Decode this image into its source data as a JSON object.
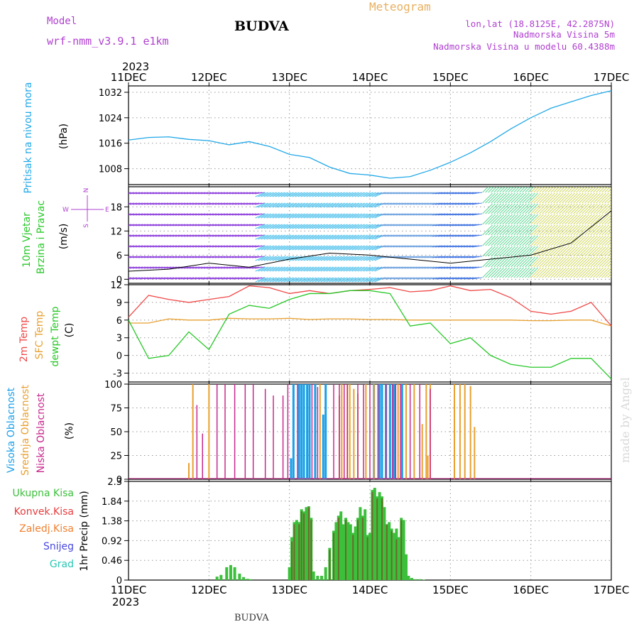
{
  "header": {
    "model_label": "Model",
    "model_name": "wrf-nmm_v3.9.1  e1km",
    "station": "BUDVA",
    "meteogram_label": "Meteogram",
    "lonlat": "lon,lat (18.8125E, 42.2875N)",
    "elevation": "Nadmorska Visina 5m",
    "model_elevation": "Nadmorska Visina u modelu 60.4388m",
    "top_year": "2023",
    "bottom_year": "2023",
    "footer_station": "BUDVA",
    "watermark": "made by Angel"
  },
  "colors": {
    "pressure": "#22a8e8",
    "temp2m": "#f04848",
    "sfc": "#e8a030",
    "dewpt": "#28c828",
    "high_cloud": "#1aa0e8",
    "mid_cloud": "#e8a030",
    "low_cloud": "#c8288c",
    "total_precip": "#3cc03c",
    "conv_precip": "#e83c3c",
    "frozen": "#f08030",
    "snow": "#4848e0",
    "hail": "#28c8b4",
    "purple_text": "#b040d0",
    "orange_text": "#e8b060"
  },
  "chart_data": [
    {
      "type": "line",
      "panel": "pressure",
      "ylabel_left": "Pritisak na nivou mora",
      "ylabel_unit": "(hPa)",
      "x_tick_labels": [
        "11DEC",
        "12DEC",
        "13DEC",
        "14DEC",
        "15DEC",
        "16DEC",
        "17DEC"
      ],
      "ylim": [
        1003,
        1034
      ],
      "y_ticks": [
        "1008",
        "1016",
        "1024",
        "1032"
      ],
      "grid": true,
      "x": [
        0,
        0.25,
        0.5,
        0.75,
        1,
        1.25,
        1.5,
        1.75,
        2,
        2.25,
        2.5,
        2.75,
        3,
        3.25,
        3.5,
        3.75,
        4,
        4.25,
        4.5,
        4.75,
        5,
        5.25,
        5.5,
        5.75,
        6
      ],
      "series": [
        {
          "values": [
            1017,
            1017.8,
            1018,
            1017.2,
            1016.8,
            1015.5,
            1016.5,
            1015,
            1012.5,
            1011.5,
            1008.5,
            1006.5,
            1006,
            1005,
            1005.5,
            1007.5,
            1010,
            1013,
            1016.5,
            1020.5,
            1024,
            1027,
            1029,
            1031,
            1032.5
          ]
        }
      ]
    },
    {
      "type": "line",
      "panel": "wind",
      "ylabel_left": "10m Vjetar",
      "ylabel_left2": "Brzina i Pravac",
      "ylabel_unit": "(m/s)",
      "compass": "N",
      "compass_w": "W",
      "compass_e": "E",
      "compass_s": "S",
      "ylim": [
        -1,
        23
      ],
      "y_ticks": [
        "0",
        "6",
        "12",
        "18"
      ],
      "x": [
        0,
        0.5,
        1,
        1.5,
        2,
        2.5,
        3,
        3.5,
        4,
        4.5,
        5,
        5.5,
        6
      ],
      "series": [
        {
          "values": [
            2,
            2.5,
            4,
            3,
            5,
            6.5,
            6,
            5,
            4,
            5,
            6,
            9,
            17
          ]
        }
      ],
      "barb_zones": [
        {
          "from": 0,
          "to": 1.7,
          "color": "#8c3cdc"
        },
        {
          "from": 1.7,
          "to": 3.2,
          "color": "#2ab4e8"
        },
        {
          "from": 3.2,
          "to": 3.9,
          "color": "#6ca0e0"
        },
        {
          "from": 3.9,
          "to": 4.4,
          "color": "#3c70e0"
        },
        {
          "from": 4.4,
          "to": 5.0,
          "color": "#40d080"
        },
        {
          "from": 5.0,
          "to": 6.0,
          "color": "#c8d040"
        }
      ]
    },
    {
      "type": "line",
      "panel": "temperature",
      "ylabel_lines": [
        "2m Temp",
        "SFC Temp",
        "dewpt Temp"
      ],
      "ylabel_unit": "(C)",
      "ylim": [
        -4.5,
        12
      ],
      "y_ticks": [
        "12",
        "9",
        "6",
        "3",
        "0",
        "-3"
      ],
      "x": [
        0,
        0.25,
        0.5,
        0.75,
        1,
        1.25,
        1.5,
        1.75,
        2,
        2.25,
        2.5,
        2.75,
        3,
        3.25,
        3.5,
        3.75,
        4,
        4.25,
        4.5,
        4.75,
        5,
        5.25,
        5.5,
        5.75,
        6
      ],
      "series": [
        {
          "name": "2m Temp",
          "values": [
            6.5,
            10.2,
            9.5,
            9,
            9.5,
            10,
            11.8,
            11.5,
            10.5,
            11,
            10.5,
            11,
            11.2,
            11.5,
            10.8,
            11,
            11.8,
            11,
            11.2,
            9.8,
            7.5,
            7,
            7.5,
            9,
            5
          ]
        },
        {
          "name": "SFC Temp",
          "values": [
            5.5,
            5.5,
            6.2,
            6,
            6,
            6.3,
            6.2,
            6.2,
            6.3,
            6.1,
            6.2,
            6.2,
            6.1,
            6.1,
            6,
            6,
            6,
            6,
            6,
            6,
            5.9,
            5.9,
            6,
            6,
            5
          ]
        },
        {
          "name": "dewpt Temp",
          "values": [
            6,
            -0.5,
            0,
            4,
            1,
            7,
            8.5,
            8,
            9.5,
            10.5,
            10.5,
            11,
            11,
            10.5,
            5,
            5.5,
            2,
            3,
            0,
            -1.5,
            -2,
            -2,
            -0.5,
            -0.5,
            -4
          ]
        }
      ]
    },
    {
      "type": "bar",
      "panel": "clouds",
      "ylabel_lines": [
        "Visoka Oblacnost",
        "Srednja Oblacnost",
        "Niska Oblacnost"
      ],
      "ylabel_unit": "(%)",
      "ylim": [
        0,
        100
      ],
      "y_ticks": [
        "100",
        "75",
        "50",
        "25",
        "0"
      ],
      "series": [
        {
          "name": "Visoka Oblacnost",
          "bars": [
            [
              2.02,
              22
            ],
            [
              2.05,
              100
            ],
            [
              2.12,
              100
            ],
            [
              2.15,
              100
            ],
            [
              2.18,
              100
            ],
            [
              2.22,
              100
            ],
            [
              2.25,
              100
            ],
            [
              2.32,
              100
            ],
            [
              2.42,
              68
            ],
            [
              2.45,
              100
            ],
            [
              3.05,
              100
            ],
            [
              3.12,
              100
            ],
            [
              3.15,
              100
            ],
            [
              3.2,
              100
            ],
            [
              3.25,
              100
            ],
            [
              3.3,
              100
            ],
            [
              3.4,
              100
            ]
          ]
        },
        {
          "name": "Srednja Oblacnost",
          "bars": [
            [
              0.75,
              17
            ],
            [
              0.8,
              100
            ],
            [
              1.0,
              100
            ],
            [
              2.38,
              100
            ],
            [
              2.62,
              88
            ],
            [
              2.65,
              100
            ],
            [
              2.72,
              100
            ],
            [
              2.75,
              100
            ],
            [
              2.8,
              95
            ],
            [
              2.85,
              90
            ],
            [
              2.95,
              100
            ],
            [
              3.05,
              100
            ],
            [
              3.35,
              100
            ],
            [
              3.45,
              100
            ],
            [
              3.55,
              100
            ],
            [
              3.65,
              58
            ],
            [
              3.7,
              100
            ],
            [
              3.72,
              25
            ],
            [
              3.75,
              100
            ],
            [
              4.05,
              100
            ],
            [
              4.12,
              100
            ],
            [
              4.18,
              100
            ],
            [
              4.25,
              98
            ],
            [
              4.3,
              55
            ]
          ]
        },
        {
          "name": "Niska Oblacnost",
          "bars": [
            [
              0.85,
              78
            ],
            [
              0.92,
              48
            ],
            [
              1.1,
              100
            ],
            [
              1.2,
              100
            ],
            [
              1.32,
              100
            ],
            [
              1.45,
              100
            ],
            [
              1.55,
              100
            ],
            [
              1.7,
              95
            ],
            [
              1.8,
              88
            ],
            [
              1.92,
              88
            ],
            [
              1.98,
              100
            ],
            [
              2.1,
              100
            ],
            [
              2.28,
              100
            ],
            [
              2.35,
              97
            ],
            [
              2.55,
              100
            ],
            [
              2.62,
              100
            ],
            [
              2.68,
              100
            ],
            [
              2.72,
              100
            ],
            [
              2.85,
              100
            ],
            [
              2.92,
              100
            ],
            [
              3.0,
              100
            ],
            [
              3.1,
              100
            ],
            [
              3.2,
              100
            ],
            [
              3.28,
              100
            ],
            [
              3.32,
              100
            ],
            [
              3.38,
              100
            ],
            [
              3.5,
              100
            ],
            [
              3.62,
              100
            ],
            [
              3.75,
              95
            ]
          ]
        }
      ]
    },
    {
      "type": "bar",
      "panel": "precip",
      "ylabel": "1hr Precip (mm)",
      "legend": [
        "Ukupna Kisa",
        "Konvek.Kisa",
        "Zaledj.Kisa",
        "Snijeg",
        "Grad"
      ],
      "ylim": [
        0,
        2.3
      ],
      "y_ticks": [
        "2.3",
        "1.84",
        "1.38",
        "0.92",
        "0.46",
        "0"
      ],
      "series": [
        {
          "name": "Ukupna Kisa",
          "x": [
            1.1,
            1.15,
            1.22,
            1.27,
            1.32,
            1.38,
            1.43,
            1.48,
            1.52,
            2.0,
            2.03,
            2.06,
            2.09,
            2.12,
            2.15,
            2.18,
            2.21,
            2.24,
            2.27,
            2.3,
            2.35,
            2.4,
            2.45,
            2.5,
            2.55,
            2.58,
            2.61,
            2.64,
            2.67,
            2.7,
            2.73,
            2.76,
            2.79,
            2.82,
            2.85,
            2.88,
            2.91,
            2.94,
            2.97,
            3.0,
            3.03,
            3.06,
            3.09,
            3.12,
            3.15,
            3.18,
            3.21,
            3.24,
            3.27,
            3.3,
            3.33,
            3.36,
            3.39,
            3.42,
            3.45,
            3.48,
            3.52,
            3.57,
            3.62,
            3.67
          ],
          "values": [
            0.08,
            0.12,
            0.3,
            0.35,
            0.3,
            0.15,
            0.07,
            0.03,
            0.02,
            0.3,
            1.0,
            1.35,
            1.4,
            1.35,
            1.65,
            1.6,
            1.7,
            1.72,
            1.45,
            0.2,
            0.1,
            0.1,
            0.3,
            0.75,
            1.15,
            1.35,
            1.5,
            1.6,
            1.3,
            1.45,
            1.35,
            1.3,
            1.1,
            1.25,
            1.45,
            1.7,
            1.5,
            1.65,
            1.05,
            1.1,
            2.1,
            2.15,
            1.95,
            2.05,
            1.95,
            1.7,
            1.3,
            1.35,
            1.2,
            1.1,
            1.2,
            1.0,
            1.45,
            1.4,
            0.6,
            0.1,
            0.05,
            0.02,
            0.02,
            0.01
          ]
        },
        {
          "name": "Konvek.Kisa",
          "x": [
            2.03,
            2.06,
            2.12,
            2.15,
            2.18,
            2.24,
            2.27,
            2.5,
            2.55,
            2.61,
            2.7,
            2.79,
            2.85,
            2.91,
            2.97,
            3.03,
            3.09,
            3.15,
            3.21,
            3.27,
            3.33,
            3.39
          ],
          "values": [
            0.9,
            1.3,
            1.3,
            1.6,
            1.55,
            1.7,
            1.4,
            0.7,
            1.1,
            1.45,
            1.4,
            1.05,
            1.4,
            1.45,
            1.0,
            2.05,
            1.9,
            1.9,
            1.3,
            1.15,
            0.95,
            1.4
          ]
        }
      ]
    }
  ]
}
